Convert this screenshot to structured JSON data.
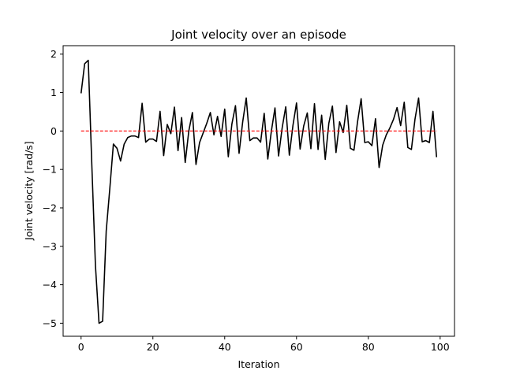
{
  "chart_data": {
    "type": "line",
    "title": "Joint velocity over an episode",
    "xlabel": "Iteration",
    "ylabel": "Joint velocity [rad/s]",
    "xlim": [
      -5,
      104
    ],
    "ylim": [
      -5.34,
      2.22
    ],
    "x_ticks": [
      0,
      20,
      40,
      60,
      80,
      100
    ],
    "y_ticks": [
      2,
      1,
      0,
      -1,
      -2,
      -3,
      -4,
      -5
    ],
    "x_tick_labels": [
      "0",
      "20",
      "40",
      "60",
      "80",
      "100"
    ],
    "y_tick_labels": [
      "2",
      "1",
      "0",
      "−1",
      "−2",
      "−3",
      "−4",
      "−5"
    ],
    "grid": false,
    "legend": false,
    "series": [
      {
        "style": "solid",
        "color": "#000000",
        "x": [
          0,
          1,
          2,
          3,
          4,
          5,
          6,
          7,
          8,
          9,
          10,
          11,
          12,
          13,
          14,
          15,
          16,
          17,
          18,
          19,
          20,
          21,
          22,
          23,
          24,
          25,
          26,
          27,
          28,
          29,
          30,
          31,
          32,
          33,
          34,
          35,
          36,
          37,
          38,
          39,
          40,
          41,
          42,
          43,
          44,
          45,
          46,
          47,
          48,
          49,
          50,
          51,
          52,
          53,
          54,
          55,
          56,
          57,
          58,
          59,
          60,
          61,
          62,
          63,
          64,
          65,
          66,
          67,
          68,
          69,
          70,
          71,
          72,
          73,
          74,
          75,
          76,
          77,
          78,
          79,
          80,
          81,
          82,
          83,
          84,
          85,
          86,
          87,
          88,
          89,
          90,
          91,
          92,
          93,
          94,
          95,
          96,
          97,
          98,
          99
        ],
        "values": [
          0.98,
          1.75,
          1.84,
          -0.9,
          -3.5,
          -5.0,
          -4.95,
          -2.6,
          -1.5,
          -0.34,
          -0.45,
          -0.78,
          -0.34,
          -0.17,
          -0.13,
          -0.13,
          -0.17,
          0.72,
          -0.29,
          -0.21,
          -0.21,
          -0.27,
          0.51,
          -0.64,
          0.17,
          -0.07,
          0.62,
          -0.51,
          0.35,
          -0.82,
          0.0,
          0.48,
          -0.87,
          -0.3,
          -0.05,
          0.2,
          0.48,
          -0.1,
          0.38,
          -0.14,
          0.57,
          -0.67,
          0.18,
          0.66,
          -0.58,
          0.23,
          0.86,
          -0.25,
          -0.18,
          -0.18,
          -0.29,
          0.46,
          -0.73,
          0.0,
          0.6,
          -0.65,
          0.08,
          0.63,
          -0.63,
          0.14,
          0.73,
          -0.47,
          0.13,
          0.47,
          -0.46,
          0.71,
          -0.48,
          0.41,
          -0.74,
          0.2,
          0.65,
          -0.56,
          0.24,
          -0.04,
          0.67,
          -0.45,
          -0.5,
          0.24,
          0.84,
          -0.3,
          -0.28,
          -0.38,
          0.32,
          -0.95,
          -0.37,
          -0.1,
          0.08,
          0.3,
          0.61,
          0.14,
          0.75,
          -0.43,
          -0.48,
          0.31,
          0.86,
          -0.28,
          -0.25,
          -0.3,
          0.51,
          -0.68
        ]
      },
      {
        "style": "dashed",
        "color": "#ff0000",
        "x": [
          0,
          99
        ],
        "values": [
          0,
          0
        ]
      }
    ]
  }
}
